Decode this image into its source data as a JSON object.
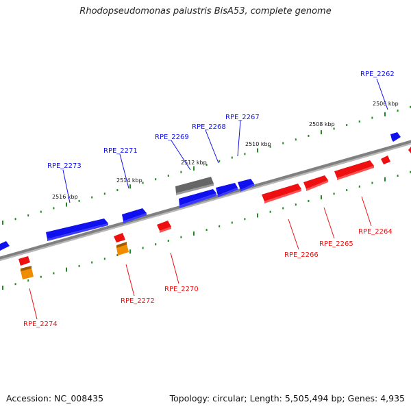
{
  "title": "Rhodopseudomonas palustris BisA53, complete genome",
  "footer": {
    "accession": "Accession: NC_008435",
    "summary": "Topology: circular; Length: 5,505,494 bp; Genes: 4,935"
  },
  "colors": {
    "forward_gene": "#1010ee",
    "reverse_gene": "#ee1010",
    "rna_gene": "#f08c00",
    "pseudo_gene": "#666666",
    "backbone": "#808080",
    "ticks": "#228822"
  },
  "scale": {
    "upper": [
      "2506 kbp",
      "2508 kbp",
      "2510 kbp",
      "2512 kbp",
      "2514 kbp",
      "2516 kbp"
    ],
    "lower": []
  },
  "genes": [
    {
      "name": "RPE_2262",
      "strand": "forward"
    },
    {
      "name": "RPE_2264",
      "strand": "reverse"
    },
    {
      "name": "RPE_2265",
      "strand": "reverse"
    },
    {
      "name": "RPE_2266",
      "strand": "reverse"
    },
    {
      "name": "RPE_2267",
      "strand": "forward"
    },
    {
      "name": "RPE_2268",
      "strand": "forward"
    },
    {
      "name": "RPE_2269",
      "strand": "forward"
    },
    {
      "name": "RPE_2270",
      "strand": "reverse"
    },
    {
      "name": "RPE_2271",
      "strand": "forward"
    },
    {
      "name": "RPE_2272",
      "strand": "reverse"
    },
    {
      "name": "RPE_2273",
      "strand": "forward"
    },
    {
      "name": "RPE_2274",
      "strand": "reverse"
    }
  ]
}
